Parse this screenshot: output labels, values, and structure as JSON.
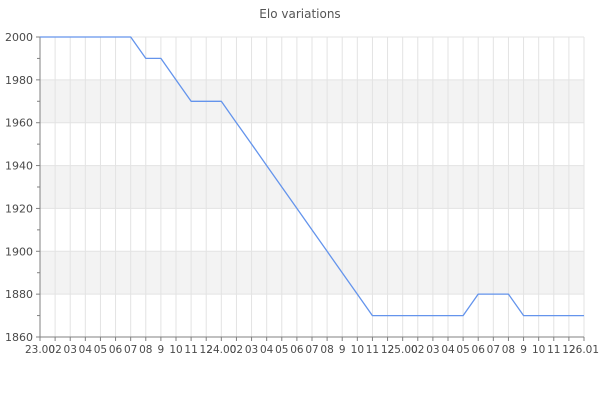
{
  "chart_data": {
    "type": "line",
    "title": "Elo variations",
    "x_labels": [
      "23.00",
      "02",
      "03",
      "04",
      "05",
      "06",
      "07",
      "08",
      "9",
      "10",
      "11",
      "12",
      "24.00",
      "02",
      "03",
      "04",
      "05",
      "06",
      "07",
      "08",
      "9",
      "10",
      "11",
      "12",
      "25.00",
      "02",
      "03",
      "04",
      "05",
      "06",
      "07",
      "08",
      "9",
      "10",
      "11",
      "12",
      "26.01"
    ],
    "series": [
      {
        "name": "Elo",
        "values": [
          2000,
          2000,
          2000,
          2000,
          2000,
          2000,
          2000,
          1990,
          1990,
          1980,
          1970,
          1970,
          1970,
          1960,
          1950,
          1940,
          1930,
          1920,
          1910,
          1900,
          1890,
          1880,
          1870,
          1870,
          1870,
          1870,
          1870,
          1870,
          1870,
          1880,
          1880,
          1880,
          1870,
          1870,
          1870,
          1870,
          1870
        ]
      }
    ],
    "ylim": [
      1860,
      2000
    ],
    "y_major_ticks": [
      2000,
      1980,
      1960,
      1940,
      1920,
      1900,
      1880,
      1860
    ],
    "y_minor_step": 10,
    "grid": "on",
    "legend": "none",
    "shaded_bands": [
      [
        1960,
        1980
      ],
      [
        1920,
        1940
      ],
      [
        1880,
        1900
      ]
    ],
    "colors": {
      "line": "#6494ec",
      "band": "#f3f3f3",
      "grid": "#e3e3e3",
      "axis": "#808080",
      "text": "#4a4a4a",
      "title": "#555555"
    }
  }
}
